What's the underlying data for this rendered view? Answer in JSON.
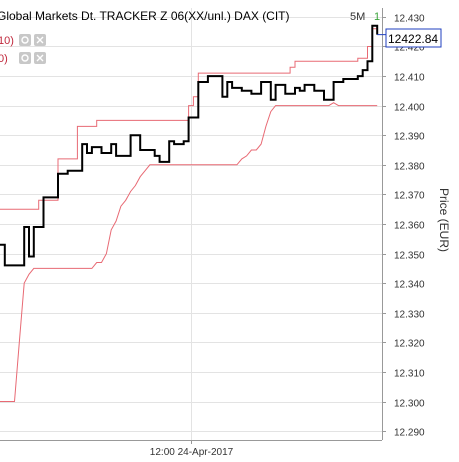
{
  "chart_data": {
    "type": "line",
    "title": "Global Markets Dt. TRACKER Z 06(XX/unl.) DAX (CIT)",
    "timeframe": "5M",
    "timeframe_count": "1",
    "ylabel": "Price (EUR)",
    "ylim": [
      12.287,
      12.433
    ],
    "xlim": [
      0,
      79
    ],
    "yticks": [
      "12.430",
      "12.420",
      "12.410",
      "12.400",
      "12.390",
      "12.380",
      "12.370",
      "12.360",
      "12.350",
      "12.340",
      "12.330",
      "12.320",
      "12.310",
      "12.300",
      "12.290"
    ],
    "ytick_values": [
      12.43,
      12.42,
      12.41,
      12.4,
      12.39,
      12.38,
      12.37,
      12.36,
      12.35,
      12.34,
      12.33,
      12.32,
      12.31,
      12.3,
      12.29
    ],
    "xtick_label": "12:00 24-Apr-2017",
    "xtick_index": 39.5,
    "last_value": "12422.84",
    "indicator_labels": [
      "10)",
      "0)"
    ],
    "grid": true,
    "price_color": "#000000",
    "band_color": "#e86a74",
    "series": [
      {
        "style": "step",
        "color": "#000000",
        "x": [
          0,
          1,
          2,
          3,
          4,
          5,
          6,
          7,
          8,
          9,
          10,
          11,
          12,
          13,
          14,
          15,
          16,
          17,
          18,
          19,
          20,
          21,
          22,
          23,
          24,
          25,
          26,
          27,
          28,
          29,
          30,
          31,
          32,
          33,
          34,
          35,
          36,
          37,
          38,
          39,
          40,
          41,
          42,
          43,
          44,
          45,
          46,
          47,
          48,
          49,
          50,
          51,
          52,
          53,
          54,
          55,
          56,
          57,
          58,
          59,
          60,
          61,
          62,
          63,
          64,
          65,
          66,
          67,
          68,
          69,
          70,
          71,
          72,
          73,
          74,
          75,
          76,
          77,
          78
        ],
        "values": [
          12.353,
          12.346,
          12.346,
          12.346,
          12.346,
          12.359,
          12.349,
          12.359,
          12.359,
          12.369,
          12.369,
          12.369,
          12.377,
          12.377,
          12.378,
          12.378,
          12.378,
          12.387,
          12.384,
          12.386,
          12.386,
          12.384,
          12.384,
          12.387,
          12.383,
          12.383,
          12.383,
          12.39,
          12.39,
          12.385,
          12.385,
          12.385,
          12.383,
          12.381,
          12.381,
          12.388,
          12.387,
          12.387,
          12.388,
          12.396,
          12.396,
          12.408,
          12.408,
          12.41,
          12.41,
          12.41,
          12.403,
          12.408,
          12.406,
          12.406,
          12.405,
          12.405,
          12.404,
          12.404,
          12.408,
          12.408,
          12.402,
          12.407,
          12.407,
          12.404,
          12.404,
          12.406,
          12.405,
          12.407,
          12.407,
          12.405,
          12.405,
          12.402,
          12.402,
          12.408,
          12.408,
          12.409,
          12.409,
          12.409,
          12.41,
          12.412,
          12.415,
          12.427,
          12.424
        ]
      },
      {
        "name": "upper",
        "style": "step",
        "color": "#e86a74",
        "x": [
          0,
          4,
          8,
          9,
          12,
          13,
          16,
          17,
          20,
          21,
          38,
          39,
          40,
          41,
          59,
          60,
          61,
          72,
          74,
          76,
          77,
          78
        ],
        "values": [
          12.365,
          12.365,
          12.368,
          12.368,
          12.382,
          12.382,
          12.393,
          12.393,
          12.395,
          12.395,
          12.395,
          12.4,
          12.403,
          12.411,
          12.411,
          12.413,
          12.415,
          12.415,
          12.416,
          12.42,
          12.426,
          12.426
        ]
      },
      {
        "name": "lower",
        "style": "line",
        "color": "#e86a74",
        "x": [
          0,
          3,
          4,
          5,
          6,
          7,
          8,
          9,
          10,
          11,
          12,
          13,
          14,
          15,
          16,
          17,
          18,
          19,
          20,
          21,
          22,
          23,
          24,
          25,
          26,
          27,
          28,
          29,
          30,
          31,
          32,
          33,
          34,
          35,
          36,
          37,
          38,
          39,
          40,
          41,
          42,
          43,
          44,
          45,
          46,
          47,
          48,
          49,
          50,
          51,
          52,
          53,
          54,
          55,
          56,
          57,
          58,
          59,
          60,
          61,
          62,
          63,
          64,
          65,
          66,
          67,
          68,
          69,
          70,
          71,
          72,
          73,
          74,
          75,
          76,
          77,
          78
        ],
        "values": [
          12.3,
          12.3,
          12.32,
          12.34,
          12.343,
          12.345,
          12.345,
          12.345,
          12.345,
          12.345,
          12.345,
          12.345,
          12.345,
          12.345,
          12.345,
          12.345,
          12.345,
          12.345,
          12.347,
          12.347,
          12.35,
          12.358,
          12.361,
          12.366,
          12.368,
          12.371,
          12.373,
          12.376,
          12.378,
          12.38,
          12.38,
          12.38,
          12.38,
          12.38,
          12.38,
          12.38,
          12.38,
          12.38,
          12.38,
          12.38,
          12.38,
          12.38,
          12.38,
          12.38,
          12.38,
          12.38,
          12.38,
          12.38,
          12.382,
          12.383,
          12.385,
          12.385,
          12.387,
          12.393,
          12.398,
          12.4,
          12.4,
          12.4,
          12.4,
          12.4,
          12.4,
          12.4,
          12.4,
          12.4,
          12.4,
          12.4,
          12.4,
          12.401,
          12.4,
          12.4,
          12.4,
          12.4,
          12.4,
          12.4,
          12.4,
          12.4,
          12.4
        ]
      }
    ]
  }
}
